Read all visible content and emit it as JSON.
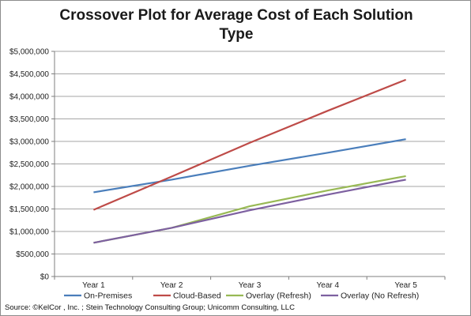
{
  "chart_data": {
    "type": "line",
    "title": "Crossover Plot for Average Cost of Each Solution Type",
    "categories": [
      "Year 1",
      "Year 2",
      "Year 3",
      "Year 4",
      "Year 5"
    ],
    "series": [
      {
        "name": "On-Premises",
        "color": "#4a7ebb",
        "values": [
          1870000,
          2150000,
          2460000,
          2750000,
          3050000
        ]
      },
      {
        "name": "Cloud-Based",
        "color": "#be4b48",
        "values": [
          1480000,
          2220000,
          2970000,
          3680000,
          4370000
        ]
      },
      {
        "name": "Overlay (Refresh)",
        "color": "#98b954",
        "values": [
          750000,
          1080000,
          1560000,
          1910000,
          2230000
        ]
      },
      {
        "name": "Overlay (No Refresh)",
        "color": "#7d60a0",
        "values": [
          750000,
          1080000,
          1470000,
          1820000,
          2150000
        ]
      }
    ],
    "yticks": [
      "$0",
      "$500,000",
      "$1,000,000",
      "$1,500,000",
      "$2,000,000",
      "$2,500,000",
      "$3,000,000",
      "$3,500,000",
      "$4,000,000",
      "$4,500,000",
      "$5,000,000"
    ],
    "ylim": [
      0,
      5000000
    ],
    "grid": true,
    "legend": "bottom",
    "source": "Source: ©KelCor , Inc. ; Stein Technology Consulting Group; Unicomm Consulting, LLC"
  }
}
